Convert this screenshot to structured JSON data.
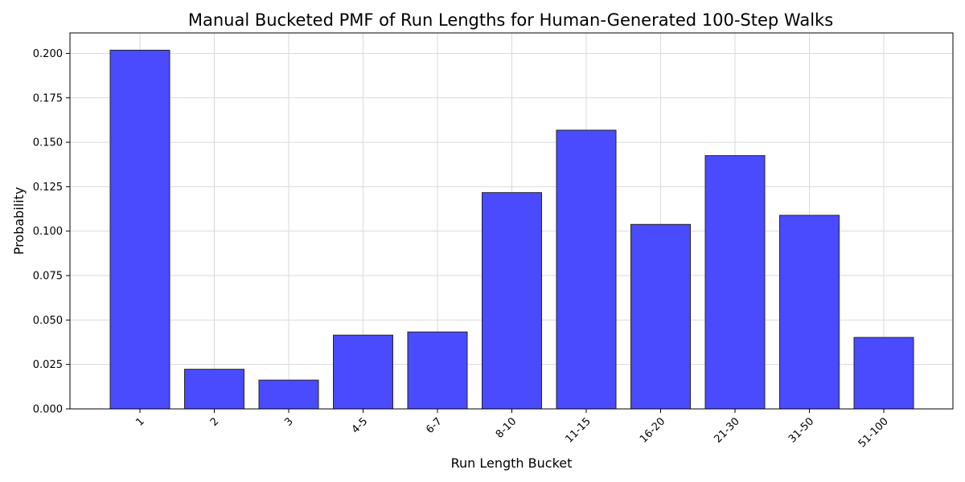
{
  "chart_data": {
    "type": "bar",
    "title": "Manual Bucketed PMF of Run Lengths for Human-Generated 100-Step Walks",
    "xlabel": "Run Length Bucket",
    "ylabel": "Probability",
    "categories": [
      "1",
      "2",
      "3",
      "4-5",
      "6-7",
      "8-10",
      "11-15",
      "16-20",
      "21-30",
      "31-50",
      "51-100"
    ],
    "values": [
      0.2018,
      0.0223,
      0.0162,
      0.0415,
      0.0433,
      0.1217,
      0.1568,
      0.1038,
      0.1425,
      0.1089,
      0.0402
    ],
    "ylim": [
      0,
      0.2115
    ],
    "yticks": [
      0.0,
      0.025,
      0.05,
      0.075,
      0.1,
      0.125,
      0.15,
      0.175,
      0.2
    ],
    "ytick_labels": [
      "0.000",
      "0.025",
      "0.050",
      "0.075",
      "0.100",
      "0.125",
      "0.150",
      "0.175",
      "0.200"
    ],
    "grid": true,
    "bar_color": "#4a4aff",
    "bar_edge_color": "#262626",
    "grid_color": "#d9d9d9",
    "xtick_rotation_deg": 45
  }
}
